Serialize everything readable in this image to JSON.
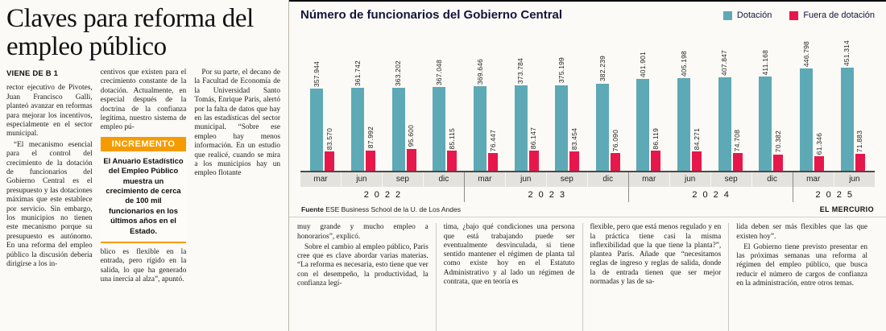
{
  "article": {
    "headline": "Claves para reforma del empleo público",
    "kicker": "VIENE DE B 1",
    "col1": [
      "rector ejecutivo de Pivotes, Juan Francisco Galli, planteó avanzar en reformas para mejorar los incentivos, especialmente en el sector municipal.",
      "“El mecanismo esencial para el control del crecimiento de la dotación de funcionarios del Gobierno Central es el presupuesto y las dotaciones máximas que este establece por servicio. Sin embargo, los municipios no tienen este mecanismo porque su presupuesto es autónomo. En una reforma del empleo público la discusión debería dirigirse a los in-"
    ],
    "col2_top": "centivos que existen para el crecimiento constante de la dotación. Actualmente, en especial después de la doctrina de la confianza legítima, nuestro sistema de empleo pú-",
    "highlight_box": {
      "label": "INCREMENTO",
      "accent_color": "#f59b00",
      "text": "El Anuario Estadístico del Empleo Público muestra un crecimiento de cerca de 100 mil funcionarios en los últimos años en el Estado."
    },
    "col2_bottom": "blico es flexible en la entrada, pero rígido en la salida, lo que ha generado una inercia al alza”, apuntó.",
    "col3": "Por su parte, el decano de la Facultad de Economía de la Universidad Santo Tomás, Enrique Paris, alertó por la falta de datos que hay en las estadísticas del sector municipal. “Sobre ese empleo hay menos información. En un estudio que realicé, cuando se mira a los municipios hay un empleo flotante",
    "bottom_columns": [
      [
        "muy grande y mucho empleo a honorarios”, explicó.",
        "Sobre el cambio al empleo público, Paris cree que es clave abordar varias materias. “La reforma es necesaria, esto tiene que ver con el desempeño, la productividad, la confianza legí-"
      ],
      [
        "tima, ¿bajo qué condiciones una persona que está trabajando puede ser eventualmente desvinculada, si tiene sentido mantener el régimen de planta tal como existe hoy en el Estatuto Administrativo y al lado un régimen de contrata, que en teoría es"
      ],
      [
        "flexible, pero que está menos regulado y en la práctica tiene casi la misma inflexibilidad que la que tiene la planta?”, plantea Paris. Añade que “necesitamos reglas de ingreso y reglas de salida, donde la de entrada tienen que ser mejor normadas y las de sa-"
      ],
      [
        "lida deben ser más flexibles que las que existen hoy”.",
        "El Gobierno tiene previsto presentar en las próximas semanas una reforma al régimen del empleo público, que busca reducir el número de cargos de confianza en la administración, entre otros temas."
      ]
    ]
  },
  "chart_data": {
    "type": "bar",
    "title": "Número de funcionarios del Gobierno Central",
    "xlabel": "",
    "ylabel": "",
    "ylim": [
      0,
      460000
    ],
    "grid": false,
    "legend_position": "top-right",
    "categories": [
      "mar",
      "jun",
      "sep",
      "dic",
      "mar",
      "jun",
      "sep",
      "dic",
      "mar",
      "jun",
      "sep",
      "dic",
      "mar",
      "jun"
    ],
    "year_groups": [
      {
        "year": "2022",
        "quarters": [
          "mar",
          "jun",
          "sep",
          "dic"
        ]
      },
      {
        "year": "2023",
        "quarters": [
          "mar",
          "jun",
          "sep",
          "dic"
        ]
      },
      {
        "year": "2024",
        "quarters": [
          "mar",
          "jun",
          "sep",
          "dic"
        ]
      },
      {
        "year": "2025",
        "quarters": [
          "mar",
          "jun"
        ]
      }
    ],
    "series": [
      {
        "name": "Dotación",
        "color": "#5ea9b6",
        "values": [
          357944,
          361742,
          363202,
          367048,
          369646,
          373784,
          375199,
          382239,
          401901,
          405198,
          407847,
          411168,
          446798,
          451314
        ],
        "labels": [
          "357.944",
          "361.742",
          "363.202",
          "367.048",
          "369.646",
          "373.784",
          "375.199",
          "382.239",
          "401.901",
          "405.198",
          "407.847",
          "411.168",
          "446.798",
          "451.314"
        ]
      },
      {
        "name": "Fuera de dotación",
        "color": "#e8174b",
        "values": [
          83570,
          87992,
          95600,
          85115,
          76447,
          86147,
          83454,
          76090,
          86119,
          84271,
          74708,
          70382,
          61346,
          71883
        ],
        "labels": [
          "83.570",
          "87.992",
          "95.600",
          "85.115",
          "76.447",
          "86.147",
          "83.454",
          "76.090",
          "86.119",
          "84.271",
          "74.708",
          "70.382",
          "61.346",
          "71.883"
        ]
      }
    ],
    "source_label": "Fuente",
    "source_text": "ESE Business School de la U. de Los Andes",
    "credit": "EL MERCURIO"
  }
}
